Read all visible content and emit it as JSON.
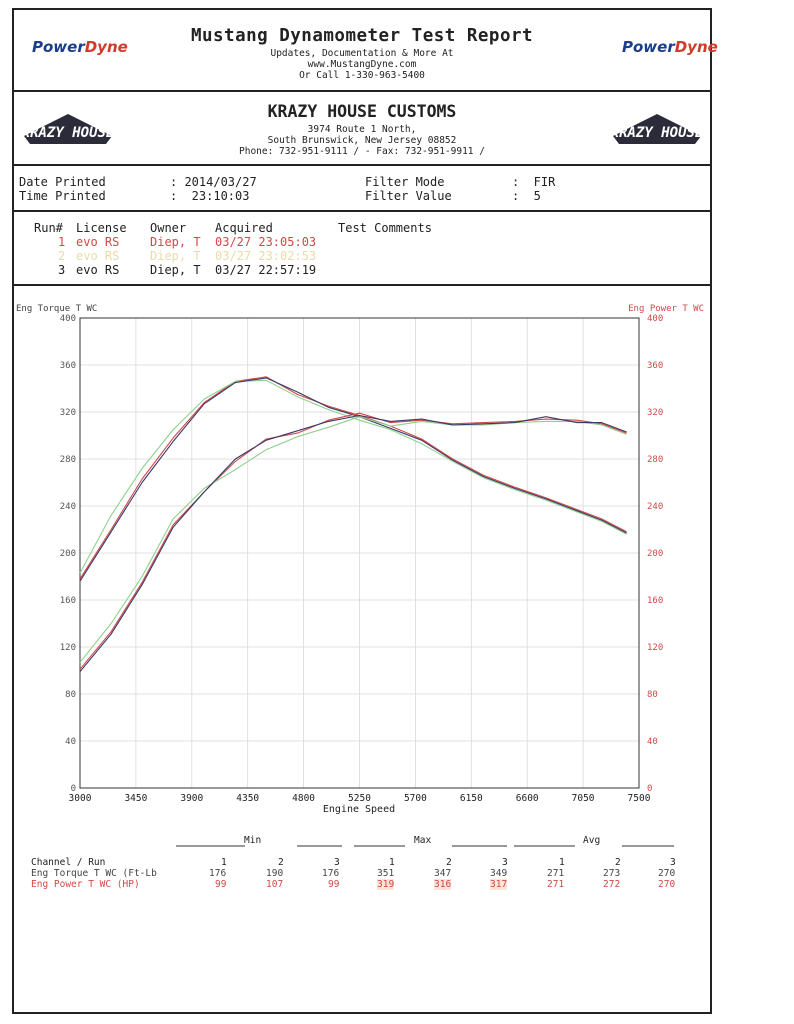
{
  "header": {
    "title": "Mustang Dynamometer Test Report",
    "line1": "Updates, Documentation & More At",
    "line2": "www.MustangDyne.com",
    "line3": "Or Call 1-330-963-5400",
    "logo_text_a": "Power",
    "logo_text_b": "Dyne"
  },
  "shop": {
    "name": "KRAZY HOUSE CUSTOMS",
    "address1": "3974 Route 1 North,",
    "address2": "South Brunswick, New Jersey  08852",
    "phone": "Phone: 732-951-9111 /  - Fax: 732-951-9911 /",
    "logo_text": "KRAZY HOUSE"
  },
  "print_info": {
    "date_label": "Date Printed",
    "date_value": ": 2014/03/27",
    "time_label": "Time Printed",
    "time_value": ":  23:10:03",
    "filter_mode_label": "Filter Mode",
    "filter_mode_value": ":  FIR",
    "filter_value_label": "Filter Value",
    "filter_value_value": ":  5"
  },
  "runs": {
    "headers": [
      "Run#",
      "License",
      "Owner",
      "Acquired",
      "Test Comments"
    ],
    "rows": [
      {
        "num": "1",
        "license": "evo RS",
        "owner": "Diep, T",
        "acquired": "03/27 23:05:03",
        "color": "#d14848"
      },
      {
        "num": "2",
        "license": "evo RS",
        "owner": "Diep, T",
        "acquired": "03/27 23:02:53",
        "color": "#e8dca6"
      },
      {
        "num": "3",
        "license": "evo RS",
        "owner": "Diep, T",
        "acquired": "03/27 22:57:19",
        "color": "#333333"
      }
    ]
  },
  "chart_data": {
    "type": "line",
    "xlabel": "Engine Speed",
    "ylabel_left": "Eng Torque T WC",
    "ylabel_right": "Eng Power T WC",
    "xlim": [
      3000,
      7500
    ],
    "ylim": [
      0,
      400
    ],
    "x_ticks": [
      3000,
      3450,
      3900,
      4350,
      4800,
      5250,
      5700,
      6150,
      6600,
      7050,
      7500
    ],
    "y_ticks": [
      0,
      40,
      80,
      120,
      160,
      200,
      240,
      280,
      320,
      360,
      400
    ],
    "grid": true,
    "x": [
      3000,
      3250,
      3500,
      3750,
      4000,
      4250,
      4500,
      4750,
      5000,
      5250,
      5500,
      5750,
      6000,
      6250,
      6500,
      6750,
      7000,
      7200,
      7400
    ],
    "series": [
      {
        "group": "torque",
        "run": "1",
        "color": "#d14848",
        "values": [
          178,
          220,
          263,
          298,
          328,
          346,
          350,
          335,
          325,
          317,
          308,
          297,
          280,
          266,
          256,
          247,
          237,
          229,
          218
        ]
      },
      {
        "group": "torque",
        "run": "2",
        "color": "#8fd08f",
        "values": [
          183,
          232,
          272,
          305,
          331,
          346,
          347,
          333,
          322,
          313,
          305,
          293,
          278,
          264,
          254,
          245,
          235,
          227,
          216
        ]
      },
      {
        "group": "torque",
        "run": "3",
        "color": "#3a3a6a",
        "values": [
          176,
          218,
          260,
          295,
          327,
          345,
          349,
          337,
          324,
          316,
          306,
          296,
          279,
          265,
          255,
          246,
          236,
          228,
          217
        ]
      },
      {
        "group": "power",
        "run": "1",
        "color": "#d14848",
        "values": [
          101,
          133,
          175,
          224,
          252,
          278,
          297,
          302,
          313,
          319,
          311,
          313,
          310,
          311,
          312,
          314,
          313,
          310,
          302
        ]
      },
      {
        "group": "power",
        "run": "2",
        "color": "#8fd08f",
        "values": [
          107,
          140,
          180,
          229,
          255,
          271,
          288,
          299,
          307,
          316,
          308,
          312,
          309,
          309,
          311,
          312,
          312,
          309,
          301
        ]
      },
      {
        "group": "power",
        "run": "3",
        "color": "#3a3a6a",
        "values": [
          99,
          131,
          173,
          222,
          252,
          280,
          296,
          304,
          312,
          317,
          312,
          314,
          309,
          310,
          311,
          316,
          311,
          311,
          303
        ]
      }
    ]
  },
  "summary": {
    "groups": [
      "Min",
      "Max",
      "Avg"
    ],
    "channel_header": "Channel / Run",
    "run_numbers": [
      "1",
      "2",
      "3",
      "1",
      "2",
      "3",
      "1",
      "2",
      "3"
    ],
    "rows": [
      {
        "label": "Eng Torque T WC (Ft-Lb",
        "values": [
          "176",
          "190",
          "176",
          "351",
          "347",
          "349",
          "271",
          "273",
          "270"
        ],
        "color": "#444444"
      },
      {
        "label": "Eng Power T WC (HP)",
        "values": [
          "99",
          "107",
          "99",
          "319",
          "316",
          "317",
          "271",
          "272",
          "270"
        ],
        "color": "#d14848"
      }
    ]
  }
}
